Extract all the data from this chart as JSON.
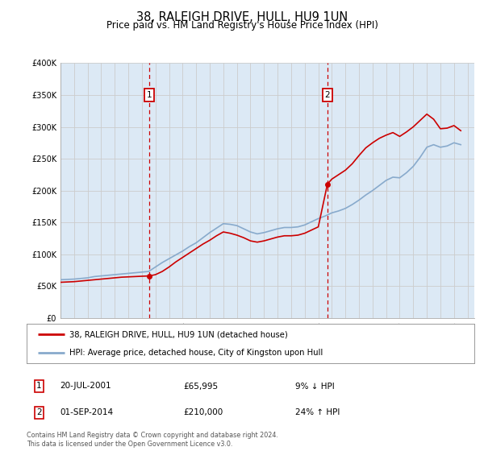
{
  "title": "38, RALEIGH DRIVE, HULL, HU9 1UN",
  "subtitle": "Price paid vs. HM Land Registry's House Price Index (HPI)",
  "ylim": [
    0,
    400000
  ],
  "yticks": [
    0,
    50000,
    100000,
    150000,
    200000,
    250000,
    300000,
    350000,
    400000
  ],
  "ytick_labels": [
    "£0",
    "£50K",
    "£100K",
    "£150K",
    "£200K",
    "£250K",
    "£300K",
    "£350K",
    "£400K"
  ],
  "xlim_start": 1995.0,
  "xlim_end": 2025.5,
  "background_color": "#ffffff",
  "plot_bg_color": "#dce9f5",
  "grid_color": "#cccccc",
  "title_fontsize": 10.5,
  "subtitle_fontsize": 8.5,
  "legend_label_red": "38, RALEIGH DRIVE, HULL, HU9 1UN (detached house)",
  "legend_label_blue": "HPI: Average price, detached house, City of Kingston upon Hull",
  "sale1_date": "20-JUL-2001",
  "sale1_price": 65995,
  "sale1_hpi": "9% ↓ HPI",
  "sale1_year": 2001.55,
  "sale2_date": "01-SEP-2014",
  "sale2_price": 210000,
  "sale2_hpi": "24% ↑ HPI",
  "sale2_year": 2014.67,
  "red_color": "#cc0000",
  "blue_color": "#88aacc",
  "footnote": "Contains HM Land Registry data © Crown copyright and database right 2024.\nThis data is licensed under the Open Government Licence v3.0.",
  "hpi_years": [
    1995.0,
    1995.5,
    1996.0,
    1996.5,
    1997.0,
    1997.5,
    1998.0,
    1998.5,
    1999.0,
    1999.5,
    2000.0,
    2000.5,
    2001.0,
    2001.5,
    2002.0,
    2002.5,
    2003.0,
    2003.5,
    2004.0,
    2004.5,
    2005.0,
    2005.5,
    2006.0,
    2006.5,
    2007.0,
    2007.5,
    2008.0,
    2008.5,
    2009.0,
    2009.5,
    2010.0,
    2010.5,
    2011.0,
    2011.5,
    2012.0,
    2012.5,
    2013.0,
    2013.5,
    2014.0,
    2014.5,
    2015.0,
    2015.5,
    2016.0,
    2016.5,
    2017.0,
    2017.5,
    2018.0,
    2018.5,
    2019.0,
    2019.5,
    2020.0,
    2020.5,
    2021.0,
    2021.5,
    2022.0,
    2022.5,
    2023.0,
    2023.5,
    2024.0,
    2024.5
  ],
  "hpi_values": [
    60000,
    60500,
    61000,
    62000,
    63000,
    65000,
    66000,
    67000,
    68000,
    69000,
    70000,
    71000,
    72000,
    73000,
    80000,
    87000,
    93000,
    99000,
    105000,
    112000,
    118000,
    126000,
    134000,
    141000,
    148000,
    147000,
    145000,
    140000,
    135000,
    132000,
    134000,
    137000,
    140000,
    142000,
    142000,
    143000,
    146000,
    151000,
    156000,
    160000,
    165000,
    168000,
    172000,
    178000,
    185000,
    193000,
    200000,
    208000,
    216000,
    221000,
    220000,
    228000,
    238000,
    252000,
    268000,
    272000,
    268000,
    270000,
    275000,
    272000
  ],
  "red_years": [
    1995.0,
    1995.5,
    1996.0,
    1996.5,
    1997.0,
    1997.5,
    1998.0,
    1998.5,
    1999.0,
    1999.5,
    2000.0,
    2000.5,
    2001.0,
    2001.55,
    2002.0,
    2002.5,
    2003.0,
    2003.5,
    2004.0,
    2004.5,
    2005.0,
    2005.5,
    2006.0,
    2006.5,
    2007.0,
    2007.5,
    2008.0,
    2008.5,
    2009.0,
    2009.5,
    2010.0,
    2010.5,
    2011.0,
    2011.5,
    2012.0,
    2012.5,
    2013.0,
    2013.5,
    2014.0,
    2014.67,
    2015.0,
    2015.5,
    2016.0,
    2016.5,
    2017.0,
    2017.5,
    2018.0,
    2018.5,
    2019.0,
    2019.5,
    2020.0,
    2020.5,
    2021.0,
    2021.5,
    2022.0,
    2022.5,
    2023.0,
    2023.5,
    2024.0,
    2024.5
  ],
  "red_values": [
    56000,
    56500,
    57000,
    58000,
    59000,
    60000,
    61000,
    62000,
    63000,
    64000,
    64500,
    65000,
    65500,
    65995,
    68000,
    73000,
    80000,
    88000,
    95000,
    102000,
    109000,
    116000,
    122000,
    129000,
    135000,
    133000,
    130000,
    126000,
    121000,
    119000,
    121000,
    124000,
    127000,
    129000,
    129000,
    130000,
    133000,
    138000,
    143000,
    210000,
    218000,
    225000,
    232000,
    242000,
    255000,
    267000,
    275000,
    282000,
    287000,
    291000,
    285000,
    292000,
    300000,
    310000,
    320000,
    312000,
    297000,
    298000,
    302000,
    294000
  ]
}
